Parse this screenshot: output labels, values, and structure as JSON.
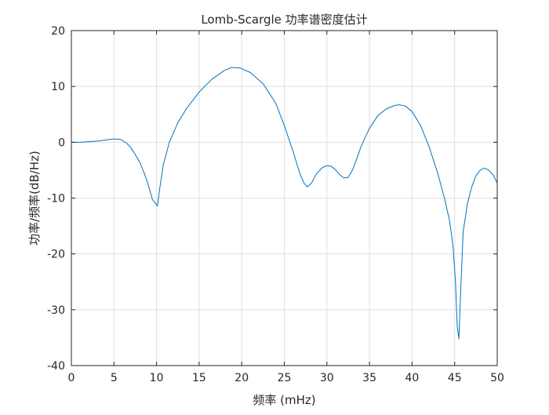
{
  "chart_data": {
    "type": "line",
    "title": "Lomb-Scargle 功率谱密度估计",
    "xlabel": "频率 (mHz)",
    "ylabel": "功率/频率(dB/Hz)",
    "xlim": [
      0,
      50
    ],
    "ylim": [
      -40,
      20
    ],
    "xticks": [
      0,
      5,
      10,
      15,
      20,
      25,
      30,
      35,
      40,
      45,
      50
    ],
    "yticks": [
      -40,
      -30,
      -20,
      -10,
      0,
      10,
      20
    ],
    "xtick_labels": [
      "0",
      "5",
      "10",
      "15",
      "20",
      "25",
      "30",
      "35",
      "40",
      "45",
      "50"
    ],
    "ytick_labels": [
      "-40",
      "-30",
      "-20",
      "-10",
      "0",
      "10",
      "20"
    ],
    "grid": true,
    "line_color": "#0072BD",
    "series": [
      {
        "x": [
          0,
          1,
          2,
          3,
          4,
          5,
          5.8,
          6.5,
          7,
          7.5,
          8,
          8.5,
          9,
          9.5,
          9.8,
          10.1,
          10.4,
          10.8,
          11.5,
          12.5,
          13.5,
          15,
          16.5,
          18,
          18.8,
          19.8,
          21,
          22.5,
          24,
          25,
          26,
          26.8,
          27.3,
          27.7,
          28.2,
          28.8,
          29.5,
          30,
          30.5,
          31,
          31.5,
          32,
          32.5,
          33,
          33.5,
          34,
          35,
          36,
          37,
          38,
          38.5,
          39.2,
          40,
          41,
          42,
          43,
          43.8,
          44.4,
          44.8,
          45.1,
          45.3,
          45.5,
          45.7,
          46,
          46.5,
          47,
          47.5,
          48,
          48.5,
          49,
          49.5,
          50
        ],
        "y": [
          0,
          0,
          0.1,
          0.2,
          0.4,
          0.6,
          0.5,
          -0.2,
          -1,
          -2.2,
          -3.5,
          -5.3,
          -7.5,
          -10.2,
          -10.8,
          -11.4,
          -8,
          -4,
          0,
          3.5,
          6,
          9,
          11.3,
          12.9,
          13.4,
          13.3,
          12.5,
          10.5,
          7,
          3,
          -1.5,
          -5.5,
          -7.3,
          -8,
          -7.3,
          -5.6,
          -4.5,
          -4.2,
          -4.3,
          -4.9,
          -5.8,
          -6.4,
          -6.3,
          -5,
          -3,
          -0.8,
          2.5,
          4.8,
          6,
          6.6,
          6.7,
          6.5,
          5.5,
          3,
          -0.8,
          -5.5,
          -10,
          -14,
          -18.5,
          -25,
          -33,
          -35.2,
          -27,
          -16,
          -11,
          -8,
          -6,
          -5,
          -4.6,
          -5,
          -5.8,
          -7.3
        ]
      }
    ]
  }
}
